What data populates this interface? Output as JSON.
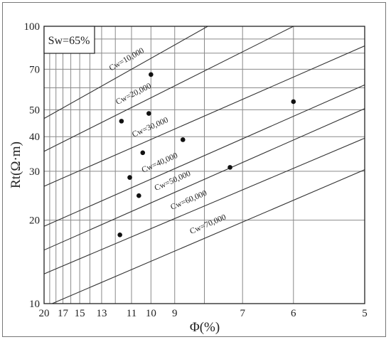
{
  "chart_data": {
    "type": "scatter",
    "title": "",
    "annotation": "Sw=65%",
    "xlabel": "Φ(%)",
    "ylabel": "Rt(Ω·m)",
    "x_scale": "reciprocal",
    "y_scale": "log",
    "xlim": [
      20,
      5
    ],
    "ylim": [
      10,
      100
    ],
    "x_ticks": [
      20,
      17,
      15,
      13,
      11,
      10,
      9,
      7,
      6,
      5
    ],
    "x_ticks_unlabeled": [
      19,
      18,
      16,
      14,
      12,
      8
    ],
    "y_ticks": [
      100,
      70,
      50,
      40,
      30,
      20,
      10
    ],
    "y_ticks_unlabeled": [
      90,
      80,
      60
    ],
    "grid": true,
    "lines": [
      {
        "label": "Cw=10,000",
        "ends": [
          [
            20,
            46.5
          ],
          [
            7.9,
            100
          ]
        ]
      },
      {
        "label": "Cw=20,000",
        "ends": [
          [
            20,
            35.4
          ],
          [
            6.0,
            100
          ]
        ]
      },
      {
        "label": "Cw=30,000",
        "ends": [
          [
            20,
            26.5
          ],
          [
            5.0,
            85
          ]
        ]
      },
      {
        "label": "Cw=40,000",
        "ends": [
          [
            20,
            19.0
          ],
          [
            5.0,
            61.5
          ]
        ]
      },
      {
        "label": "Cw=50,000",
        "ends": [
          [
            20,
            15.6
          ],
          [
            5.0,
            50.5
          ]
        ]
      },
      {
        "label": "Cw=60,000",
        "ends": [
          [
            20,
            12.8
          ],
          [
            5.0,
            39.5
          ]
        ]
      },
      {
        "label": "Cw=70,000",
        "ends": [
          [
            18.6,
            10.0
          ],
          [
            5.0,
            30.4
          ]
        ]
      }
    ],
    "points": [
      {
        "x": 10.0,
        "y": 67
      },
      {
        "x": 6.0,
        "y": 53.5
      },
      {
        "x": 11.6,
        "y": 45.5
      },
      {
        "x": 10.1,
        "y": 48.5
      },
      {
        "x": 8.7,
        "y": 39.0
      },
      {
        "x": 10.4,
        "y": 35.0
      },
      {
        "x": 11.1,
        "y": 28.5
      },
      {
        "x": 7.3,
        "y": 31.0
      },
      {
        "x": 10.6,
        "y": 24.5
      },
      {
        "x": 11.7,
        "y": 17.7
      }
    ]
  }
}
